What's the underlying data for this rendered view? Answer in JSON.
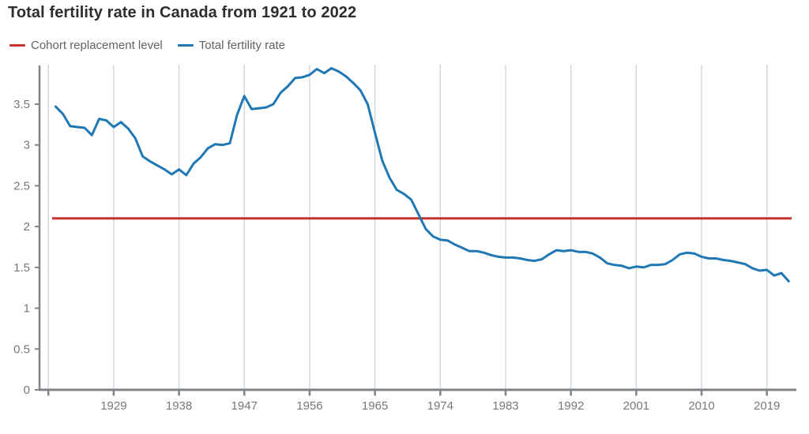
{
  "title": "Total fertility rate in Canada from 1921 to 2022",
  "legend": {
    "items": [
      {
        "key": "cohort-replacement-level",
        "label": "Cohort replacement level",
        "color": "#c5342c"
      },
      {
        "key": "total-fertility-rate",
        "label": "Total fertility rate",
        "color": "#1f77b4"
      }
    ]
  },
  "colors": {
    "axis": "#7f8387",
    "grid": "#ccd5da",
    "tick_text": "#76777a",
    "title_text": "#2e2e2e",
    "legend_text": "#626265",
    "replacement_red": "#c5342c",
    "fertility_blue": "#1f77b4"
  },
  "chart_data": {
    "type": "line",
    "title": "Total fertility rate in Canada from 1921 to 2022",
    "xlabel": "",
    "ylabel": "",
    "grid": "vertical-only",
    "legend_position": "top-left",
    "xlim": [
      1920,
      2022.5
    ],
    "ylim": [
      0,
      3.96
    ],
    "xticks": [
      1929,
      1938,
      1947,
      1956,
      1965,
      1974,
      1983,
      1992,
      2001,
      2010,
      2019
    ],
    "grid_years": [
      1920,
      1929,
      1938,
      1947,
      1956,
      1965,
      1974,
      1983,
      1992,
      2001,
      2010,
      2019
    ],
    "yticks": [
      0,
      0.5,
      1,
      1.5,
      2,
      2.5,
      3,
      3.5
    ],
    "x": [
      1921,
      1922,
      1923,
      1924,
      1925,
      1926,
      1927,
      1928,
      1929,
      1930,
      1931,
      1932,
      1933,
      1934,
      1935,
      1936,
      1937,
      1938,
      1939,
      1940,
      1941,
      1942,
      1943,
      1944,
      1945,
      1946,
      1947,
      1948,
      1949,
      1950,
      1951,
      1952,
      1953,
      1954,
      1955,
      1956,
      1957,
      1958,
      1959,
      1960,
      1961,
      1962,
      1963,
      1964,
      1965,
      1966,
      1967,
      1968,
      1969,
      1970,
      1971,
      1972,
      1973,
      1974,
      1975,
      1976,
      1977,
      1978,
      1979,
      1980,
      1981,
      1982,
      1983,
      1984,
      1985,
      1986,
      1987,
      1988,
      1989,
      1990,
      1991,
      1992,
      1993,
      1994,
      1995,
      1996,
      1997,
      1998,
      1999,
      2000,
      2001,
      2002,
      2003,
      2004,
      2005,
      2006,
      2007,
      2008,
      2009,
      2010,
      2011,
      2012,
      2013,
      2014,
      2015,
      2016,
      2017,
      2018,
      2019,
      2020,
      2021,
      2022
    ],
    "series": [
      {
        "name": "Cohort replacement level",
        "type": "constant",
        "value": 2.1,
        "color": "#c5342c"
      },
      {
        "name": "Total fertility rate",
        "type": "line",
        "color": "#1f77b4",
        "values": [
          3.47,
          3.38,
          3.23,
          3.22,
          3.21,
          3.12,
          3.32,
          3.3,
          3.22,
          3.28,
          3.2,
          3.08,
          2.86,
          2.8,
          2.75,
          2.7,
          2.64,
          2.7,
          2.63,
          2.77,
          2.85,
          2.96,
          3.01,
          3.0,
          3.02,
          3.37,
          3.6,
          3.44,
          3.45,
          3.46,
          3.5,
          3.64,
          3.72,
          3.82,
          3.83,
          3.86,
          3.93,
          3.88,
          3.94,
          3.9,
          3.84,
          3.76,
          3.67,
          3.5,
          3.15,
          2.81,
          2.6,
          2.45,
          2.4,
          2.33,
          2.15,
          1.97,
          1.88,
          1.84,
          1.83,
          1.78,
          1.74,
          1.7,
          1.7,
          1.68,
          1.65,
          1.63,
          1.62,
          1.62,
          1.61,
          1.59,
          1.58,
          1.6,
          1.66,
          1.71,
          1.7,
          1.71,
          1.69,
          1.69,
          1.67,
          1.62,
          1.55,
          1.53,
          1.52,
          1.49,
          1.51,
          1.5,
          1.53,
          1.53,
          1.54,
          1.59,
          1.66,
          1.68,
          1.67,
          1.63,
          1.61,
          1.61,
          1.59,
          1.58,
          1.56,
          1.54,
          1.49,
          1.46,
          1.47,
          1.4,
          1.43,
          1.33
        ]
      }
    ]
  }
}
